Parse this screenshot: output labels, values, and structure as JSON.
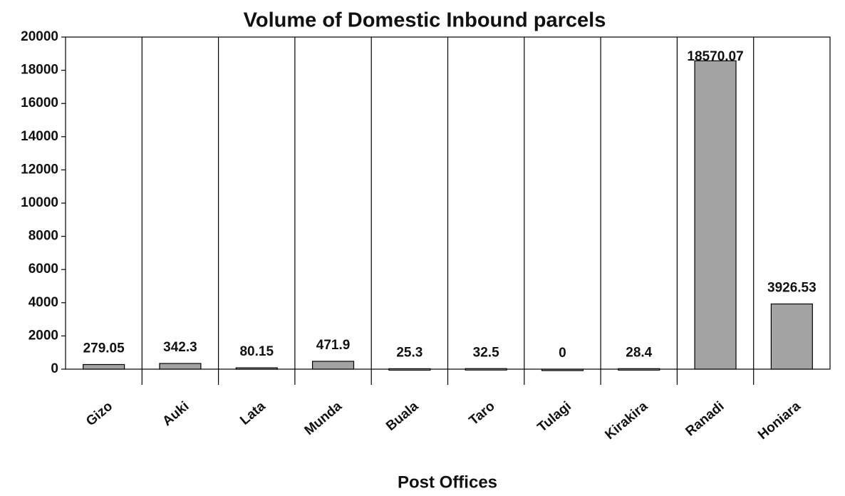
{
  "chart_data": {
    "type": "bar",
    "title": "Volume of Domestic Inbound parcels",
    "x_label": "Post Offices",
    "categories": [
      "Gizo",
      "Auki",
      "Lata",
      "Munda",
      "Buala",
      "Taro",
      "Tulagi",
      "Kirakira",
      "Ranadi",
      "Honiara"
    ],
    "values": [
      279.05,
      342.3,
      80.15,
      471.9,
      25.3,
      32.5,
      0,
      28.4,
      18570.07,
      3926.53
    ],
    "color": "#a3a3a3",
    "ylim": [
      0,
      20000
    ],
    "yticks": [
      0,
      2000,
      4000,
      6000,
      8000,
      10000,
      12000,
      14000,
      16000,
      18000,
      20000
    ],
    "grid": "x",
    "data_labels": true
  }
}
